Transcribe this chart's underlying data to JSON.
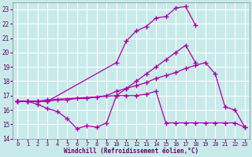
{
  "background_color": "#c8eaea",
  "grid_color": "#ffffff",
  "line_color": "#aa00aa",
  "marker": "+",
  "xlabel": "Windchill (Refroidissement éolien,°C)",
  "xlabel_color": "#660066",
  "tick_color": "#660066",
  "xlim": [
    -0.5,
    23.5
  ],
  "ylim": [
    14,
    23.5
  ],
  "yticks": [
    14,
    15,
    16,
    17,
    18,
    19,
    20,
    21,
    22,
    23
  ],
  "xticks": [
    0,
    1,
    2,
    3,
    4,
    5,
    6,
    7,
    8,
    9,
    10,
    11,
    12,
    13,
    14,
    15,
    16,
    17,
    18,
    19,
    20,
    21,
    22,
    23
  ],
  "series": [
    {
      "x": [
        0,
        1,
        2,
        3,
        4,
        5,
        6,
        7,
        8,
        9,
        10,
        11,
        12,
        13,
        14,
        15,
        16,
        17,
        18,
        19,
        20,
        21,
        22,
        23
      ],
      "y": [
        16.6,
        16.6,
        16.4,
        16.1,
        15.9,
        15.4,
        14.7,
        14.9,
        14.8,
        15.1,
        17.0,
        17.0,
        17.0,
        17.1,
        17.3,
        15.1,
        15.1,
        15.1,
        15.1,
        15.1,
        15.1,
        15.1,
        15.1,
        14.8
      ]
    },
    {
      "x": [
        0,
        1,
        2,
        3,
        4,
        5,
        6,
        7,
        8,
        9,
        10,
        11,
        12,
        13,
        14,
        15,
        16,
        17,
        18,
        19,
        20,
        21,
        22,
        23
      ],
      "y": [
        16.6,
        16.6,
        16.6,
        16.6,
        16.7,
        16.7,
        16.8,
        16.8,
        16.9,
        17.0,
        17.3,
        17.5,
        17.7,
        17.9,
        18.2,
        18.4,
        18.6,
        18.9,
        19.1,
        19.3,
        18.5,
        16.2,
        16.0,
        14.8
      ]
    },
    {
      "x": [
        0,
        1,
        2,
        3,
        10,
        11,
        12,
        13,
        14,
        15,
        16,
        17,
        18
      ],
      "y": [
        16.6,
        16.6,
        16.6,
        16.6,
        19.3,
        20.8,
        21.5,
        21.8,
        22.4,
        22.5,
        23.1,
        23.2,
        21.9
      ]
    },
    {
      "x": [
        0,
        1,
        2,
        3,
        10,
        11,
        12,
        13,
        14,
        15,
        16,
        17,
        18
      ],
      "y": [
        16.6,
        16.6,
        16.6,
        16.7,
        17.0,
        17.5,
        18.0,
        18.5,
        19.0,
        19.5,
        20.0,
        20.5,
        19.3
      ]
    }
  ]
}
